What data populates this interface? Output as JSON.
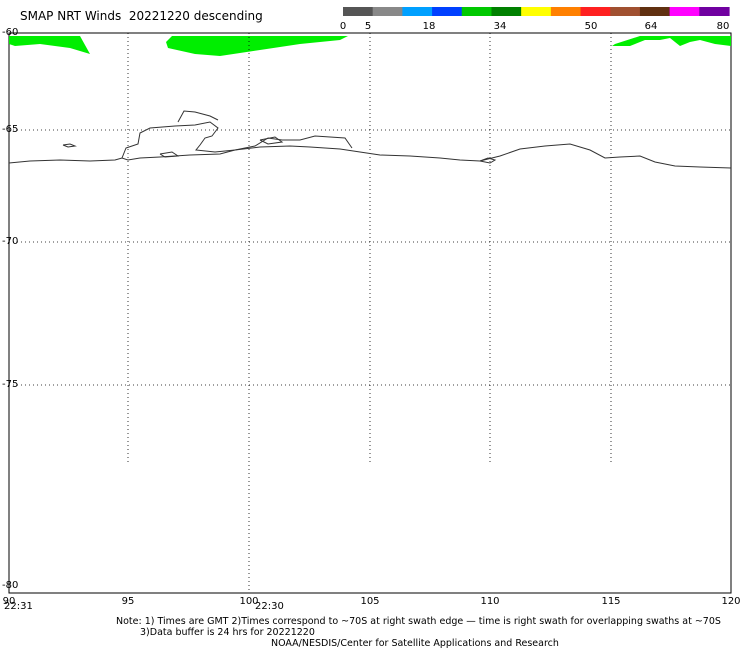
{
  "title": "SMAP NRT Winds  20221220 descending",
  "color_scale": {
    "labels": [
      "0",
      "5",
      "18",
      "34",
      "50",
      "64",
      "80"
    ],
    "segments": [
      "#555555",
      "#888888",
      "#00a0ff",
      "#0040ff",
      "#00c800",
      "#008000",
      "#ffff00",
      "#ff8000",
      "#ff2020",
      "#a05030",
      "#603010",
      "#ff00ff",
      "#7000a0"
    ]
  },
  "map": {
    "lat_labels": [
      "-60",
      "-65",
      "-70",
      "-75",
      "-80"
    ],
    "lon_labels": [
      "90",
      "95",
      "100",
      "105",
      "110",
      "115",
      "120"
    ],
    "time_labels": [
      "22:31",
      "22:30"
    ],
    "wind_color": "#00ee00",
    "coast_color": "#333333"
  },
  "notes": {
    "line1": "Note: 1) Times are GMT 2)Times correspond to ~70S at right swath edge — time is right swath for overlapping swaths at ~70S",
    "line2": "3)Data buffer is 24 hrs for 20221220",
    "line3": "NOAA/NESDIS/Center for Satellite Applications and Research"
  }
}
